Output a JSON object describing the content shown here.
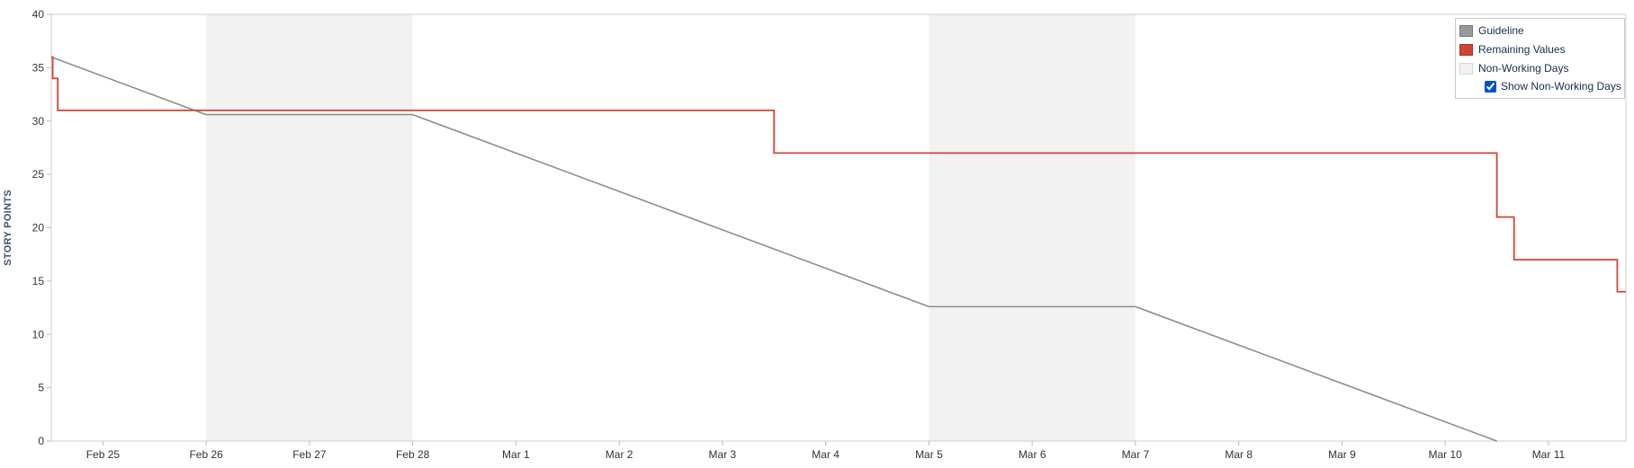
{
  "chart_data": {
    "type": "line",
    "ylabel": "STORY POINTS",
    "xlabel": "",
    "title": "",
    "ylim": [
      0,
      40
    ],
    "yticks": [
      0,
      5,
      10,
      15,
      20,
      25,
      30,
      35,
      40
    ],
    "xlim": [
      "2025-02-24T12:00",
      "2025-03-11T18:00"
    ],
    "xticks": [
      {
        "date": "2025-02-25",
        "label": "Feb 25"
      },
      {
        "date": "2025-02-26",
        "label": "Feb 26"
      },
      {
        "date": "2025-02-27",
        "label": "Feb 27"
      },
      {
        "date": "2025-02-28",
        "label": "Feb 28"
      },
      {
        "date": "2025-03-01",
        "label": "Mar 1"
      },
      {
        "date": "2025-03-02",
        "label": "Mar 2"
      },
      {
        "date": "2025-03-03",
        "label": "Mar 3"
      },
      {
        "date": "2025-03-04",
        "label": "Mar 4"
      },
      {
        "date": "2025-03-05",
        "label": "Mar 5"
      },
      {
        "date": "2025-03-06",
        "label": "Mar 6"
      },
      {
        "date": "2025-03-07",
        "label": "Mar 7"
      },
      {
        "date": "2025-03-08",
        "label": "Mar 8"
      },
      {
        "date": "2025-03-09",
        "label": "Mar 9"
      },
      {
        "date": "2025-03-10",
        "label": "Mar 10"
      },
      {
        "date": "2025-03-11",
        "label": "Mar 11"
      }
    ],
    "non_working_periods": [
      {
        "start": "2025-02-26",
        "end": "2025-02-28"
      },
      {
        "start": "2025-03-05",
        "end": "2025-03-07"
      }
    ],
    "series": [
      {
        "name": "Guideline",
        "color": "#8c8c8c",
        "points": [
          {
            "x": "2025-02-24T12:00",
            "y": 36
          },
          {
            "x": "2025-02-26T00:00",
            "y": 30.6
          },
          {
            "x": "2025-02-28T00:00",
            "y": 30.6
          },
          {
            "x": "2025-03-05T00:00",
            "y": 12.6
          },
          {
            "x": "2025-03-07T00:00",
            "y": 12.6
          },
          {
            "x": "2025-03-10T12:00",
            "y": 0
          }
        ]
      },
      {
        "name": "Remaining Values",
        "color": "#d04437",
        "step": true,
        "points": [
          {
            "x": "2025-02-24T12:00",
            "y": 36
          },
          {
            "x": "2025-02-24T12:20",
            "y": 34
          },
          {
            "x": "2025-02-24T13:30",
            "y": 31
          },
          {
            "x": "2025-03-03T12:00",
            "y": 27
          },
          {
            "x": "2025-03-10T12:00",
            "y": 21
          },
          {
            "x": "2025-03-10T16:00",
            "y": 17
          },
          {
            "x": "2025-03-11T16:00",
            "y": 14
          },
          {
            "x": "2025-03-11T18:00",
            "y": 14
          }
        ]
      }
    ],
    "legend": {
      "position": "top-right",
      "items": [
        {
          "label": "Guideline",
          "color": "#8c8c8c"
        },
        {
          "label": "Remaining Values",
          "color": "#d04437"
        },
        {
          "label": "Non-Working Days",
          "color": "#f0f0f0"
        }
      ],
      "toggle_label": "Show Non-Working Days",
      "toggle_checked": true
    },
    "grid": false
  }
}
